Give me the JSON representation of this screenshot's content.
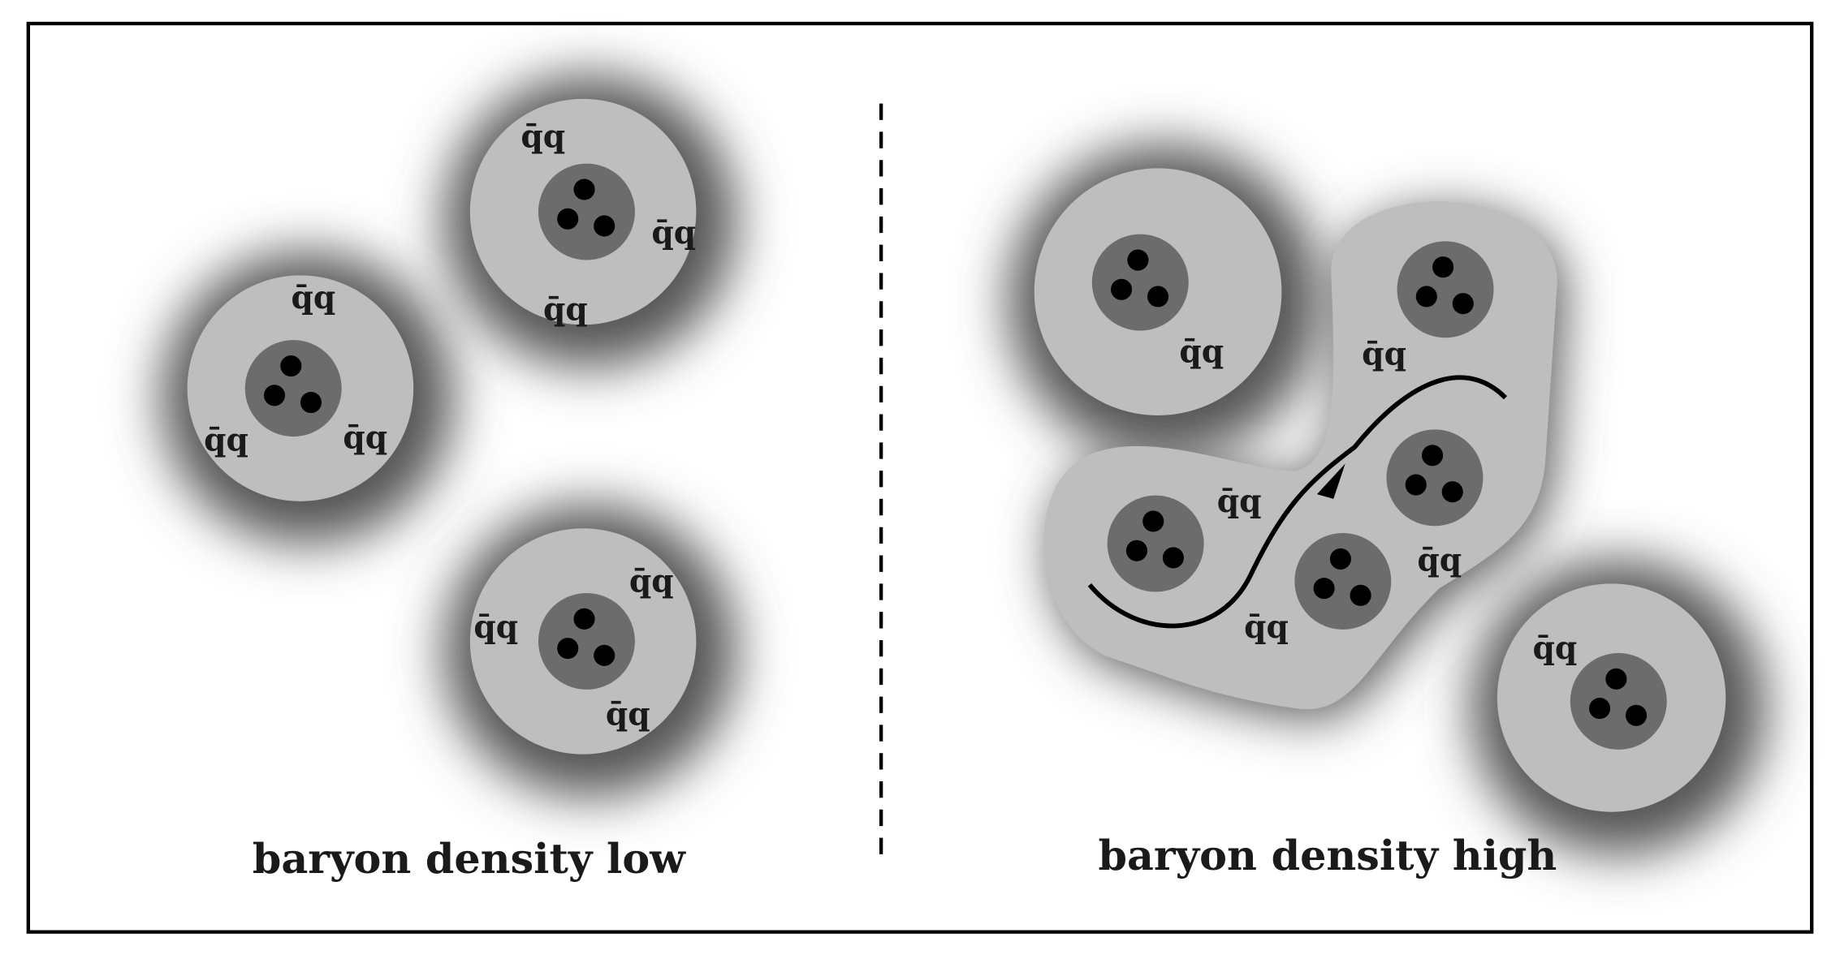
{
  "panels": [
    {
      "caption": "baryon density low",
      "condensate_labels": [
        "q̄q",
        "q̄q",
        "q̄q",
        "q̄q",
        "q̄q",
        "q̄q",
        "q̄q",
        "q̄q",
        "q̄q"
      ]
    },
    {
      "caption": "baryon density high",
      "condensate_labels": [
        "q̄q",
        "q̄q",
        "q̄q",
        "q̄q",
        "q̄q",
        "q̄q"
      ]
    }
  ]
}
